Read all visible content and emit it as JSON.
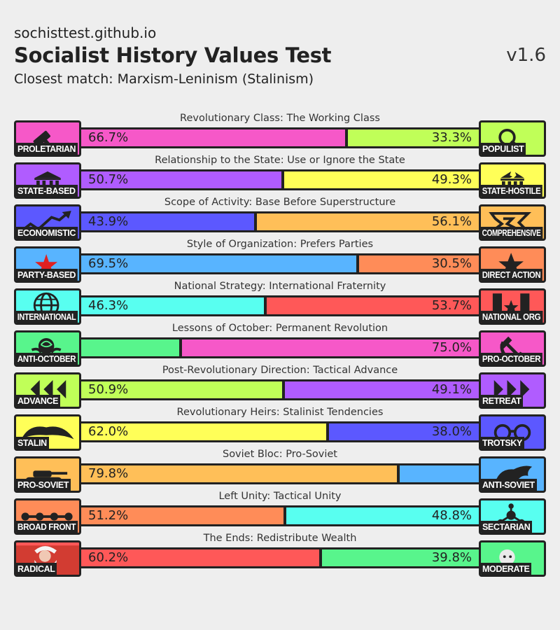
{
  "header": {
    "site": "sochisttest.github.io",
    "title": "Socialist History Values Test",
    "version": "v1.6",
    "closest_match": "Closest match: Marxism-Leninism (Stalinism)"
  },
  "axes": [
    {
      "label": "Revolutionary Class: The Working Class",
      "left": {
        "name": "PROLETARIAN",
        "icon": "hammer-icon",
        "color": "#f658c8",
        "pct": "66.7%"
      },
      "right": {
        "name": "POPULIST",
        "icon": "magnifier-icon",
        "color": "#c0ff58",
        "pct": "33.3%"
      },
      "left_fraction": 0.667
    },
    {
      "label": "Relationship to the State: Use or Ignore the State",
      "left": {
        "name": "STATE-BASED",
        "icon": "government-building-icon",
        "color": "#b05cff",
        "pct": "50.7%"
      },
      "right": {
        "name": "STATE-HOSTILE",
        "icon": "broken-building-icon",
        "color": "#ffff58",
        "pct": "49.3%"
      },
      "left_fraction": 0.507
    },
    {
      "label": "Scope of Activity: Base Before Superstructure",
      "left": {
        "name": "ECONOMISTIC",
        "icon": "rising-arrow-icon",
        "color": "#5c58ff",
        "pct": "43.9%"
      },
      "right": {
        "name": "COMPREHENSIVE",
        "icon": "branching-arrows-icon",
        "color": "#ffbf58",
        "pct": "56.1%"
      },
      "left_fraction": 0.439
    },
    {
      "label": "Style of Organization: Prefers Parties",
      "left": {
        "name": "PARTY-BASED",
        "icon": "red-star-icon",
        "color": "#58b4ff",
        "pct": "69.5%"
      },
      "right": {
        "name": "DIRECT ACTION",
        "icon": "black-star-icon",
        "color": "#ff8c58",
        "pct": "30.5%"
      },
      "left_fraction": 0.695
    },
    {
      "label": "National Strategy: International Fraternity",
      "left": {
        "name": "INTERNATIONAL",
        "icon": "globe-icon",
        "color": "#58fff0",
        "pct": "46.3%"
      },
      "right": {
        "name": "NATIONAL ORG",
        "icon": "flag-star-icon",
        "color": "#ff5858",
        "pct": "53.7%"
      },
      "left_fraction": 0.463
    },
    {
      "label": "Lessons of October: Permanent Revolution",
      "left": {
        "name": "ANTI-OCTOBER",
        "icon": "rose-icon",
        "color": "#58f58c",
        "pct": ""
      },
      "right": {
        "name": "PRO-OCTOBER",
        "icon": "hammer-sickle-icon",
        "color": "#f658c8",
        "pct": "75.0%"
      },
      "left_fraction": 0.25
    },
    {
      "label": "Post-Revolutionary Direction: Tactical Advance",
      "left": {
        "name": "ADVANCE",
        "icon": "rewind-arrows-icon",
        "color": "#c0ff58",
        "pct": "50.9%"
      },
      "right": {
        "name": "RETREAT",
        "icon": "forward-arrows-icon",
        "color": "#b05cff",
        "pct": "49.1%"
      },
      "left_fraction": 0.509
    },
    {
      "label": "Revolutionary Heirs: Stalinist Tendencies",
      "left": {
        "name": "STALIN",
        "icon": "moustache-icon",
        "color": "#ffff58",
        "pct": "62.0%"
      },
      "right": {
        "name": "TROTSKY",
        "icon": "glasses-icon",
        "color": "#5c58ff",
        "pct": "38.0%"
      },
      "left_fraction": 0.62
    },
    {
      "label": "Soviet Bloc: Pro-Soviet",
      "left": {
        "name": "PRO-SOVIET",
        "icon": "tank-icon",
        "color": "#ffbf58",
        "pct": "79.8%"
      },
      "right": {
        "name": "ANTI-SOVIET",
        "icon": "cartoon-head-icon",
        "color": "#58b4ff",
        "pct": ""
      },
      "left_fraction": 0.798
    },
    {
      "label": "Left Unity: Tactical Unity",
      "left": {
        "name": "BROAD FRONT",
        "icon": "connected-dots-icon",
        "color": "#ff8c58",
        "pct": "51.2%"
      },
      "right": {
        "name": "SECTARIAN",
        "icon": "network-icon",
        "color": "#58fff0",
        "pct": "48.8%"
      },
      "left_fraction": 0.512
    },
    {
      "label": "The Ends: Redistribute Wealth",
      "left": {
        "name": "RADICAL",
        "icon": "marx-portrait-icon",
        "color": "#ff5858",
        "pct": "60.2%"
      },
      "right": {
        "name": "MODERATE",
        "icon": "bernstein-portrait-icon",
        "color": "#58f58c",
        "pct": "39.8%"
      },
      "left_fraction": 0.602
    }
  ]
}
